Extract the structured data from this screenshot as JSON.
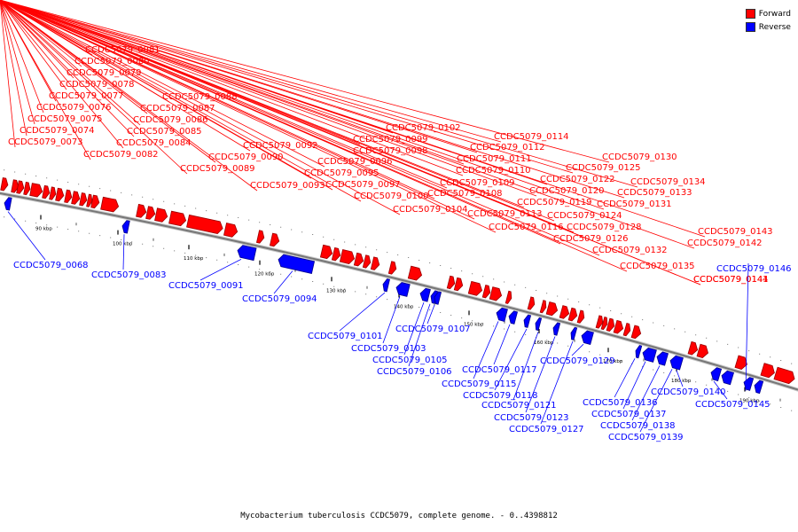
{
  "colors": {
    "forward": "#ff0000",
    "reverse": "#0000ff",
    "forward_dark": "#9a0000",
    "reverse_dark": "#00008a",
    "backbone": "#777777"
  },
  "legend": [
    {
      "label": "Forward",
      "color": "#ff0000"
    },
    {
      "label": "Reverse",
      "color": "#0000ff"
    }
  ],
  "footer": "Mycobacterium tuberculosis CCDC5079, complete genome. - 0..4398812",
  "scale_labels": [
    "90 kbp",
    "100 kbp",
    "110 kbp",
    "120 kbp",
    "130 kbp",
    "140 kbp",
    "150 kbp",
    "160 kbp",
    "170 kbp",
    "180 kbp",
    "190 kbp"
  ],
  "forward_labels": [
    "CCDC5079_0073",
    "CCDC5079_0074",
    "CCDC5079_0075",
    "CCDC5079_0076",
    "CCDC5079_0077",
    "CCDC5079_0078",
    "CCDC5079_0079",
    "CCDC5079_0080",
    "CCDC5079_0081",
    "CCDC5079_0082",
    "CCDC5079_0084",
    "CCDC5079_0085",
    "CCDC5079_0086",
    "CCDC5079_0087",
    "CCDC5079_0088",
    "CCDC5079_0089",
    "CCDC5079_0090",
    "CCDC5079_0092",
    "CCDC5079_0093",
    "CCDC5079_0095",
    "CCDC5079_0096",
    "CCDC5079_0097",
    "CCDC5079_0098",
    "CCDC5079_0099",
    "CCDC5079_0100",
    "CCDC5079_0102",
    "CCDC5079_0104",
    "CCDC5079_0108",
    "CCDC5079_0109",
    "CCDC5079_0110",
    "CCDC5079_0111",
    "CCDC5079_0112",
    "CCDC5079_0113",
    "CCDC5079_0114",
    "CCDC5079_0116",
    "CCDC5079_0119",
    "CCDC5079_0120",
    "CCDC5079_0122",
    "CCDC5079_0124",
    "CCDC5079_0125",
    "CCDC5079_0126",
    "CCDC5079_0128",
    "CCDC5079_0130",
    "CCDC5079_0131",
    "CCDC5079_0132",
    "CCDC5079_0133",
    "CCDC5079_0134",
    "CCDC5079_0135",
    "CCDC5079_0141",
    "CCDC5079_0142",
    "CCDC5079_0143",
    "CCDC5079_0144"
  ],
  "reverse_labels": [
    "CCDC5079_0068",
    "CCDC5079_0083",
    "CCDC5079_0091",
    "CCDC5079_0094",
    "CCDC5079_0101",
    "CCDC5079_0103",
    "CCDC5079_0105",
    "CCDC5079_0106",
    "CCDC5079_0107",
    "CCDC5079_0115",
    "CCDC5079_0117",
    "CCDC5079_0118",
    "CCDC5079_0121",
    "CCDC5079_0123",
    "CCDC5079_0127",
    "CCDC5079_0129",
    "CCDC5079_0136",
    "CCDC5079_0137",
    "CCDC5079_0138",
    "CCDC5079_0139",
    "CCDC5079_0140",
    "CCDC5079_0145",
    "CCDC5079_0146"
  ]
}
